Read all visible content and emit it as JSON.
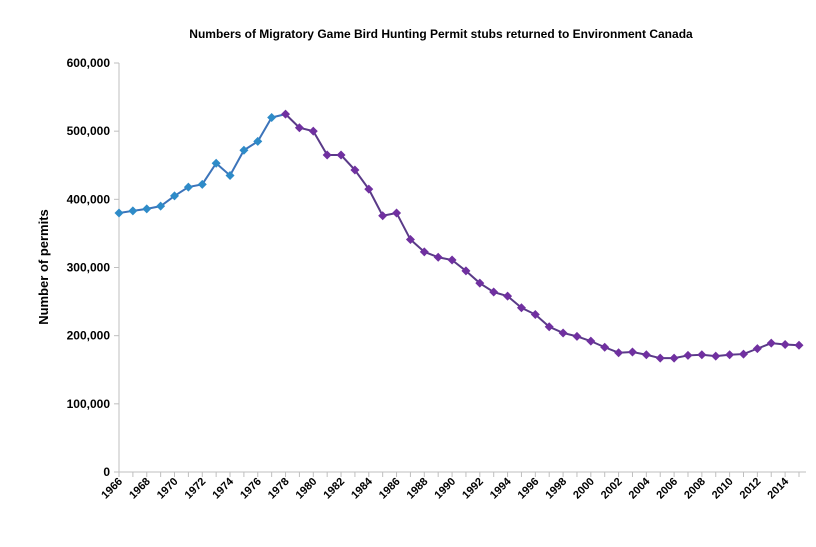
{
  "chart_data": {
    "type": "line",
    "title": "Numbers of Migratory Game Bird Hunting Permit stubs returned to Environment Canada",
    "xlabel": "",
    "ylabel": "Number of permits",
    "ylim": [
      0,
      600000
    ],
    "yticks": [
      "0",
      "100,000",
      "200,000",
      "300,000",
      "400,000",
      "500,000",
      "600,000"
    ],
    "grid": false,
    "x": [
      1966,
      1967,
      1968,
      1969,
      1970,
      1971,
      1972,
      1973,
      1974,
      1975,
      1976,
      1977,
      1978,
      1979,
      1980,
      1981,
      1982,
      1983,
      1984,
      1985,
      1986,
      1987,
      1988,
      1989,
      1990,
      1991,
      1992,
      1993,
      1994,
      1995,
      1996,
      1997,
      1998,
      1999,
      2000,
      2001,
      2002,
      2003,
      2004,
      2005,
      2006,
      2007,
      2008,
      2009,
      2010,
      2011,
      2012,
      2013,
      2014,
      2015
    ],
    "xticks": [
      "1966",
      "1968",
      "1970",
      "1972",
      "1974",
      "1976",
      "1978",
      "1980",
      "1982",
      "1984",
      "1986",
      "1988",
      "1990",
      "1992",
      "1994",
      "1996",
      "1998",
      "2000",
      "2002",
      "2004",
      "2006",
      "2008",
      "2010",
      "2012",
      "2014"
    ],
    "values": [
      380000,
      383000,
      386000,
      390000,
      405000,
      418000,
      422000,
      453000,
      435000,
      472000,
      485000,
      520000,
      525000,
      505000,
      500000,
      465000,
      465000,
      443000,
      415000,
      376000,
      380000,
      341000,
      323000,
      315000,
      311000,
      295000,
      277000,
      264000,
      258000,
      241000,
      231000,
      213000,
      204000,
      199000,
      192000,
      183000,
      175000,
      176000,
      172000,
      167000,
      167000,
      171000,
      172000,
      170000,
      172000,
      173000,
      181000,
      189000,
      187000,
      186000
    ],
    "color_change_year": 1978,
    "colors": {
      "early_marker": "#2E8BC8",
      "early_line": "#3C74BA",
      "late_marker": "#7030A0",
      "late_line": "#5A3A88",
      "axis": "#BFBFBF"
    }
  }
}
